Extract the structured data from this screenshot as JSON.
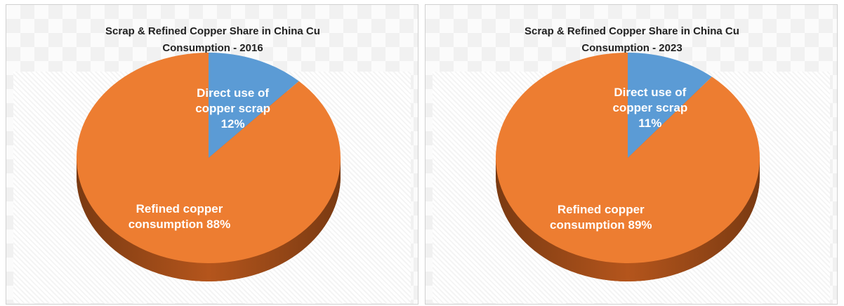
{
  "chart_data": [
    {
      "type": "pie",
      "title": "Scrap & Refined Copper Share in China Cu Consumption - 2016",
      "categories": [
        "Direct use of copper scrap",
        "Refined copper consumption"
      ],
      "values": [
        12,
        88
      ],
      "value_labels": [
        "12%",
        "88%"
      ],
      "colors": [
        "#5b9bd5",
        "#ed7d31"
      ]
    },
    {
      "type": "pie",
      "title": "Scrap & Refined Copper Share in China Cu Consumption - 2023",
      "categories": [
        "Direct use of copper scrap",
        "Refined copper consumption"
      ],
      "values": [
        11,
        89
      ],
      "value_labels": [
        "11%",
        "89%"
      ],
      "colors": [
        "#5b9bd5",
        "#ed7d31"
      ]
    }
  ]
}
